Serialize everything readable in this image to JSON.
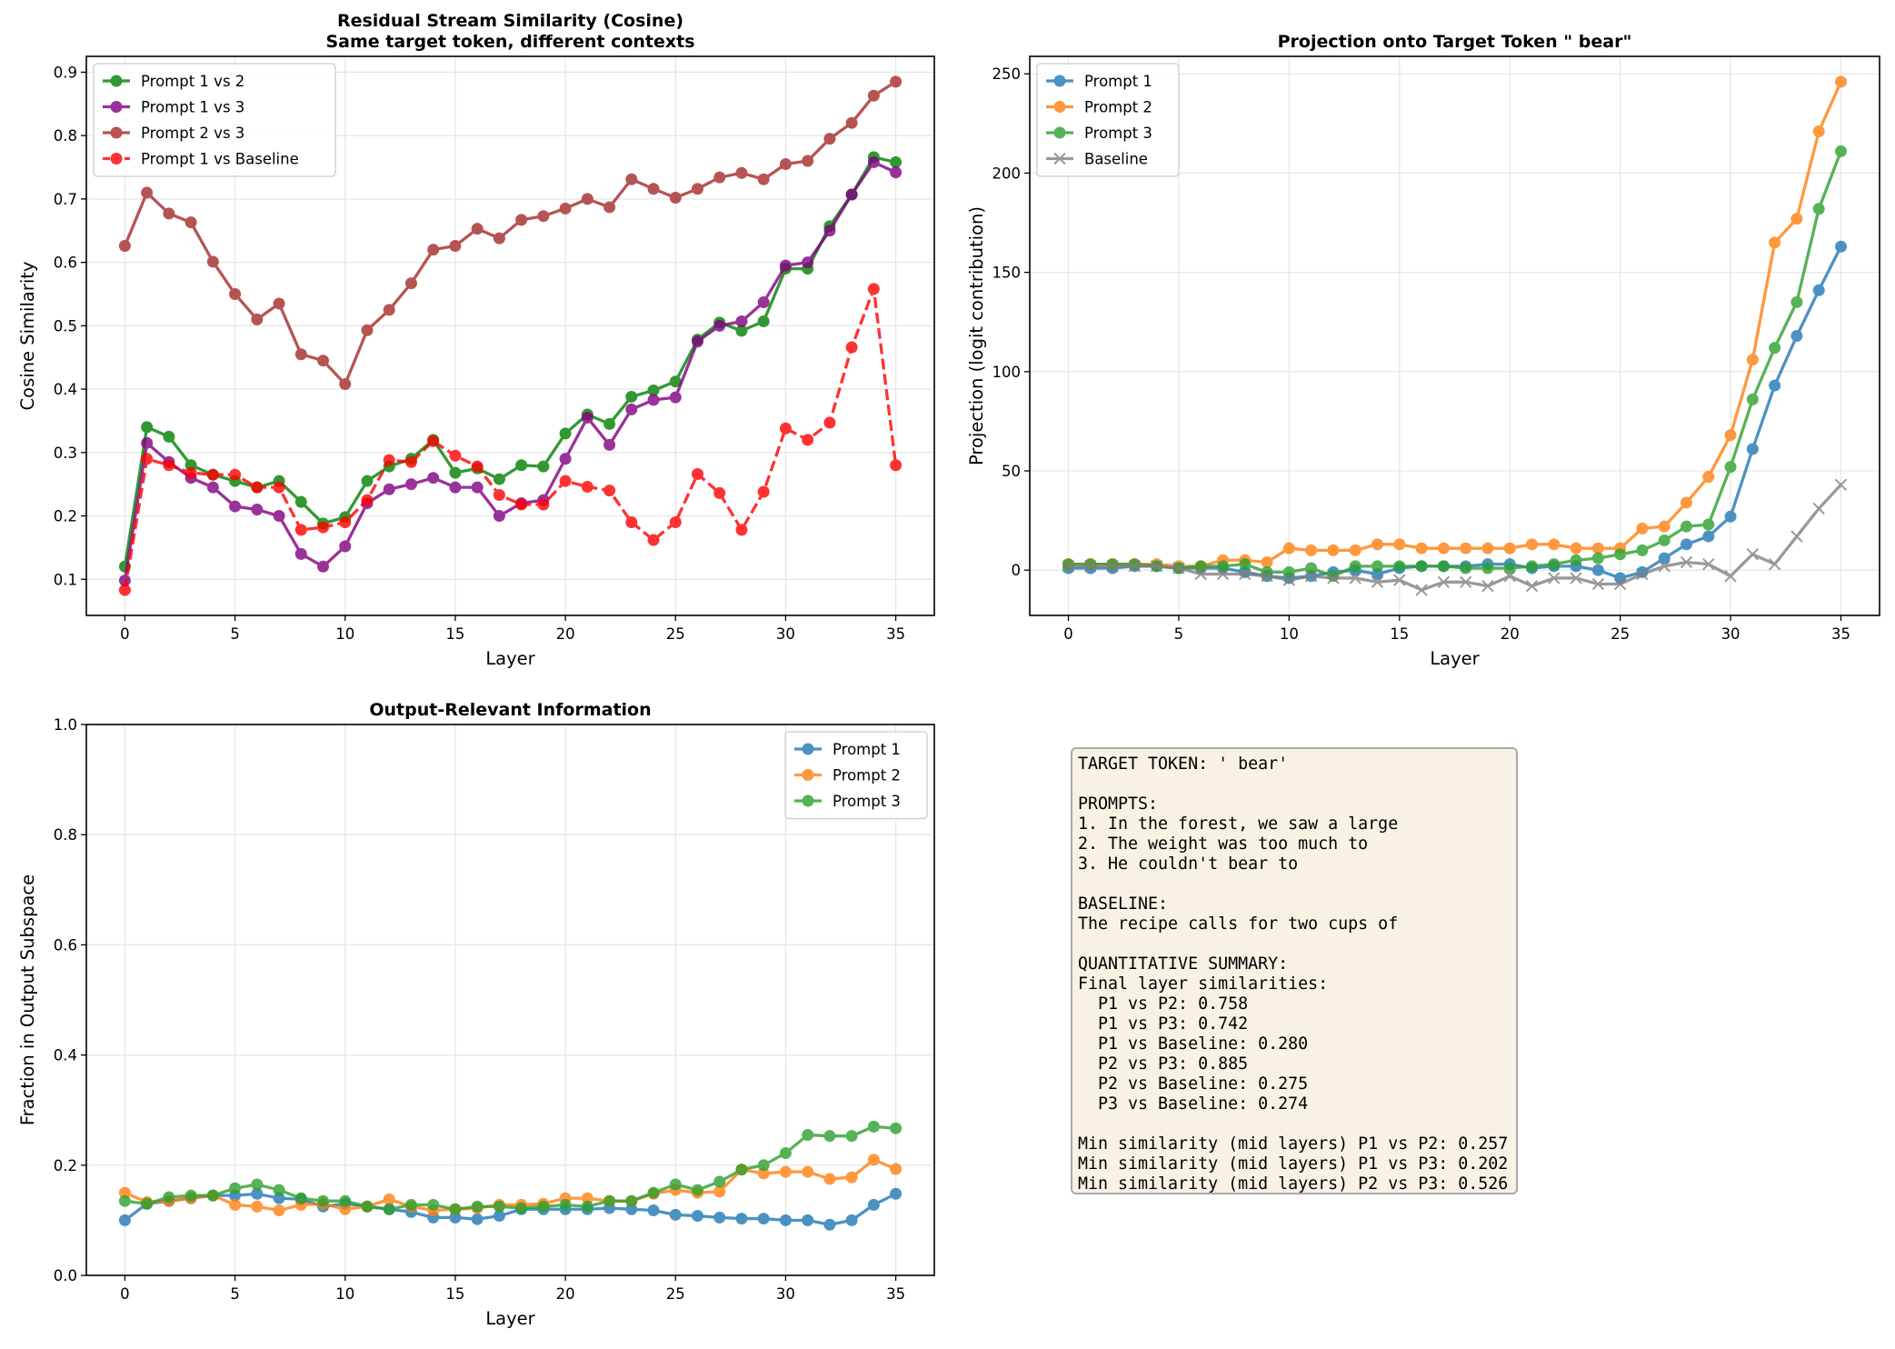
{
  "chart_data": [
    {
      "type": "line",
      "title": "Residual Stream Similarity (Cosine)\nSame target token, different contexts",
      "title_lines": [
        "Residual Stream Similarity (Cosine)",
        "Same target token, different contexts"
      ],
      "xlabel": "Layer",
      "ylabel": "Cosine Similarity",
      "xlim": [
        -1.75,
        36.75
      ],
      "ylim": [
        0.043,
        0.925
      ],
      "xticks": [
        0,
        5,
        10,
        15,
        20,
        25,
        30,
        35
      ],
      "yticks": [
        0.1,
        0.2,
        0.3,
        0.4,
        0.5,
        0.6,
        0.7,
        0.8,
        0.9
      ],
      "ytick_labels": [
        "0.1",
        "0.2",
        "0.3",
        "0.4",
        "0.5",
        "0.6",
        "0.7",
        "0.8",
        "0.9"
      ],
      "grid": true,
      "legend": "top-left",
      "series": [
        {
          "name": "Prompt 1 vs 2",
          "color": "#008000",
          "dashed": false,
          "marker": "o",
          "values": [
            0.12,
            0.34,
            0.325,
            0.28,
            0.265,
            0.255,
            0.245,
            0.255,
            0.222,
            0.188,
            0.198,
            0.255,
            0.278,
            0.29,
            0.32,
            0.268,
            0.275,
            0.258,
            0.28,
            0.278,
            0.33,
            0.36,
            0.345,
            0.388,
            0.398,
            0.412,
            0.478,
            0.505,
            0.492,
            0.507,
            0.59,
            0.59,
            0.657,
            0.707,
            0.766,
            0.758
          ]
        },
        {
          "name": "Prompt 1 vs 3",
          "color": "#800080",
          "dashed": false,
          "marker": "o",
          "values": [
            0.098,
            0.315,
            0.285,
            0.26,
            0.245,
            0.215,
            0.21,
            0.2,
            0.14,
            0.12,
            0.152,
            0.22,
            0.242,
            0.25,
            0.26,
            0.245,
            0.245,
            0.2,
            0.22,
            0.225,
            0.29,
            0.355,
            0.312,
            0.368,
            0.383,
            0.387,
            0.475,
            0.5,
            0.507,
            0.537,
            0.595,
            0.6,
            0.65,
            0.707,
            0.758,
            0.742
          ]
        },
        {
          "name": "Prompt 2 vs 3",
          "color": "#a52a2a",
          "dashed": false,
          "marker": "o",
          "values": [
            0.626,
            0.71,
            0.677,
            0.663,
            0.601,
            0.55,
            0.51,
            0.535,
            0.455,
            0.445,
            0.408,
            0.493,
            0.525,
            0.567,
            0.62,
            0.626,
            0.653,
            0.638,
            0.667,
            0.673,
            0.685,
            0.7,
            0.687,
            0.731,
            0.716,
            0.702,
            0.716,
            0.734,
            0.741,
            0.731,
            0.755,
            0.76,
            0.795,
            0.82,
            0.863,
            0.885
          ]
        },
        {
          "name": "Prompt 1 vs Baseline",
          "color": "#ff0000",
          "dashed": true,
          "marker": "o",
          "values": [
            0.083,
            0.29,
            0.28,
            0.268,
            0.265,
            0.265,
            0.245,
            0.245,
            0.178,
            0.182,
            0.19,
            0.225,
            0.288,
            0.285,
            0.318,
            0.295,
            0.278,
            0.233,
            0.218,
            0.218,
            0.255,
            0.246,
            0.24,
            0.19,
            0.162,
            0.19,
            0.266,
            0.236,
            0.178,
            0.238,
            0.338,
            0.32,
            0.347,
            0.466,
            0.558,
            0.28
          ]
        }
      ]
    },
    {
      "type": "line",
      "title_lines": [
        "Projection onto Target Token \" bear\""
      ],
      "xlabel": "Layer",
      "ylabel": "Projection (logit contribution)",
      "xlim": [
        -1.75,
        36.75
      ],
      "ylim": [
        -22.8,
        258.8
      ],
      "xticks": [
        0,
        5,
        10,
        15,
        20,
        25,
        30,
        35
      ],
      "yticks": [
        0,
        50,
        100,
        150,
        200,
        250
      ],
      "ytick_labels": [
        "0",
        "50",
        "100",
        "150",
        "200",
        "250"
      ],
      "grid": true,
      "legend": "top-left",
      "series": [
        {
          "name": "Prompt 1",
          "color": "#1f77b4",
          "dashed": false,
          "marker": "o",
          "values": [
            1,
            1,
            1,
            2,
            2,
            1,
            1,
            1,
            -1,
            -3,
            -4,
            -3,
            -1,
            0,
            -2,
            1,
            2,
            2,
            2,
            3,
            3,
            1,
            2,
            2,
            0,
            -4,
            -1,
            6,
            13,
            17,
            27,
            61,
            93,
            118,
            141,
            163
          ]
        },
        {
          "name": "Prompt 2",
          "color": "#ff7f0e",
          "dashed": false,
          "marker": "o",
          "values": [
            3,
            3,
            3,
            3,
            3,
            2,
            2,
            5,
            5,
            4,
            11,
            10,
            10,
            10,
            13,
            13,
            11,
            11,
            11,
            11,
            11,
            13,
            13,
            11,
            11,
            11,
            21,
            22,
            34,
            47,
            68,
            106,
            165,
            177,
            221,
            246
          ]
        },
        {
          "name": "Prompt 3",
          "color": "#2ca02c",
          "dashed": false,
          "marker": "o",
          "values": [
            3,
            3,
            3,
            3,
            2,
            1,
            2,
            2,
            3,
            -1,
            -1,
            1,
            -3,
            2,
            2,
            2,
            2,
            2,
            1,
            1,
            1,
            2,
            3,
            5,
            6,
            8,
            10,
            15,
            22,
            23,
            52,
            86,
            112,
            135,
            182,
            211
          ]
        },
        {
          "name": "Baseline",
          "color": "#808080",
          "dashed": false,
          "marker": "x",
          "values": [
            2,
            2,
            2,
            2,
            2,
            1,
            -2,
            -2,
            -2,
            -3,
            -5,
            -3,
            -4,
            -4,
            -6,
            -5,
            -10,
            -6,
            -6,
            -8,
            -3,
            -8,
            -4,
            -4,
            -7,
            -7,
            -2,
            2,
            4,
            3,
            -3,
            8,
            3,
            17,
            31,
            43
          ]
        }
      ]
    },
    {
      "type": "line",
      "title_lines": [
        "Output-Relevant Information"
      ],
      "xlabel": "Layer",
      "ylabel": "Fraction in Output Subspace",
      "xlim": [
        -1.75,
        36.75
      ],
      "ylim": [
        0,
        1
      ],
      "xticks": [
        0,
        5,
        10,
        15,
        20,
        25,
        30,
        35
      ],
      "yticks": [
        0,
        0.2,
        0.4,
        0.6,
        0.8,
        1.0
      ],
      "ytick_labels": [
        "0.0",
        "0.2",
        "0.4",
        "0.6",
        "0.8",
        "1.0"
      ],
      "grid": true,
      "legend": "top-right",
      "series": [
        {
          "name": "Prompt 1",
          "color": "#1f77b4",
          "dashed": false,
          "marker": "o",
          "values": [
            0.1,
            0.13,
            0.135,
            0.14,
            0.145,
            0.145,
            0.148,
            0.14,
            0.138,
            0.125,
            0.13,
            0.125,
            0.12,
            0.115,
            0.105,
            0.105,
            0.102,
            0.108,
            0.12,
            0.12,
            0.12,
            0.12,
            0.122,
            0.12,
            0.118,
            0.11,
            0.108,
            0.105,
            0.103,
            0.103,
            0.1,
            0.1,
            0.092,
            0.1,
            0.128,
            0.148
          ]
        },
        {
          "name": "Prompt 2",
          "color": "#ff7f0e",
          "dashed": false,
          "marker": "o",
          "values": [
            0.15,
            0.133,
            0.135,
            0.14,
            0.145,
            0.128,
            0.125,
            0.118,
            0.128,
            0.13,
            0.12,
            0.125,
            0.138,
            0.125,
            0.118,
            0.12,
            0.122,
            0.128,
            0.128,
            0.13,
            0.14,
            0.14,
            0.135,
            0.135,
            0.148,
            0.155,
            0.15,
            0.152,
            0.192,
            0.185,
            0.188,
            0.188,
            0.175,
            0.178,
            0.21,
            0.193
          ]
        },
        {
          "name": "Prompt 3",
          "color": "#2ca02c",
          "dashed": false,
          "marker": "o",
          "values": [
            0.135,
            0.13,
            0.142,
            0.145,
            0.145,
            0.158,
            0.165,
            0.155,
            0.14,
            0.135,
            0.135,
            0.125,
            0.12,
            0.128,
            0.128,
            0.12,
            0.125,
            0.125,
            0.122,
            0.125,
            0.128,
            0.125,
            0.135,
            0.135,
            0.15,
            0.165,
            0.155,
            0.17,
            0.192,
            0.2,
            0.222,
            0.255,
            0.253,
            0.253,
            0.27,
            0.267
          ]
        }
      ]
    }
  ],
  "textbox": {
    "lines": [
      "TARGET TOKEN: ' bear'",
      "",
      "PROMPTS:",
      "1. In the forest, we saw a large",
      "2. The weight was too much to",
      "3. He couldn't bear to",
      "",
      "BASELINE:",
      "The recipe calls for two cups of",
      "",
      "QUANTITATIVE SUMMARY:",
      "Final layer similarities:",
      "  P1 vs P2: 0.758",
      "  P1 vs P3: 0.742",
      "  P1 vs Baseline: 0.280",
      "  P2 vs P3: 0.885",
      "  P2 vs Baseline: 0.275",
      "  P3 vs Baseline: 0.274",
      "",
      "Min similarity (mid layers) P1 vs P2: 0.257",
      "Min similarity (mid layers) P1 vs P3: 0.202",
      "Min similarity (mid layers) P2 vs P3: 0.526"
    ]
  }
}
